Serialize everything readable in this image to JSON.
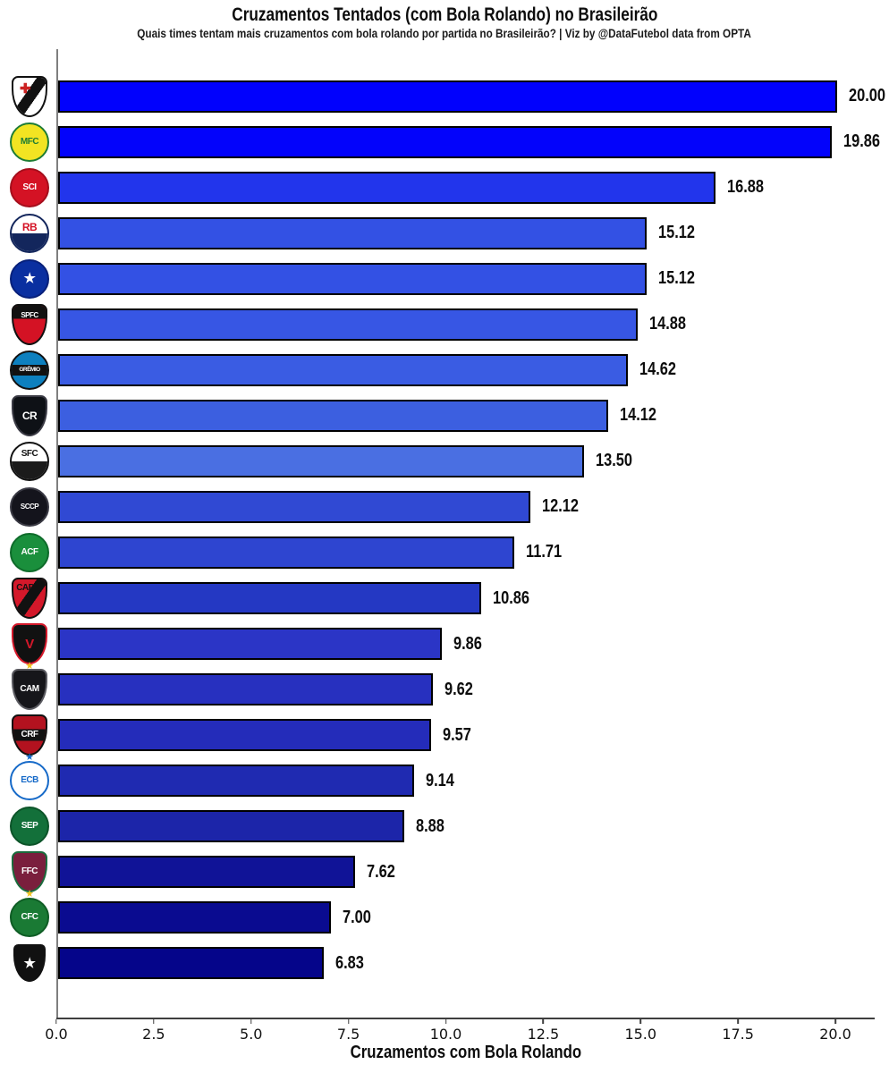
{
  "header": {
    "title": "Cruzamentos Tentados (com Bola Rolando) no Brasileirão",
    "subtitle": "Quais times tentam mais cruzamentos com bola rolando por partida no Brasileirão? | Viz by @DataFutebol data from OPTA"
  },
  "chart_data": {
    "type": "bar",
    "orientation": "horizontal",
    "title": "Cruzamentos Tentados (com Bola Rolando) no Brasileirão",
    "xlabel": "Cruzamentos com Bola Rolando",
    "ylabel": "",
    "xlim": [
      0,
      21
    ],
    "grid": false,
    "legend": "none",
    "bar_edge_color": "#000000",
    "x_ticks": [
      {
        "label": "0.0",
        "value": 0
      },
      {
        "label": "2.5",
        "value": 2.5
      },
      {
        "label": "5.0",
        "value": 5
      },
      {
        "label": "7.5",
        "value": 7.5
      },
      {
        "label": "10.0",
        "value": 10
      },
      {
        "label": "12.5",
        "value": 12.5
      },
      {
        "label": "15.0",
        "value": 15
      },
      {
        "label": "17.5",
        "value": 17.5
      },
      {
        "label": "20.0",
        "value": 20
      }
    ],
    "bars": [
      {
        "team": "Vasco da Gama",
        "value": 20.0,
        "label": "20.00",
        "color": "#0101FD",
        "logo": {
          "shape": "shield",
          "bg": "#ffffff",
          "border": "#111111",
          "band": "diagonal",
          "band_color": "#111111",
          "text": "✚",
          "text_color": "#cc2222",
          "text_pos": "tl"
        }
      },
      {
        "team": "Mirassol",
        "value": 19.86,
        "label": "19.86",
        "color": "#0303FB",
        "logo": {
          "shape": "circle",
          "bg": "#f2e422",
          "border": "#1e7c34",
          "text": "MFC",
          "text_color": "#1e7c34"
        }
      },
      {
        "team": "Internacional",
        "value": 16.88,
        "label": "16.88",
        "color": "#2235EC",
        "logo": {
          "shape": "circle",
          "bg": "#d41224",
          "border": "#a50e1c",
          "text": "SCI",
          "text_color": "#ffffff"
        }
      },
      {
        "team": "Red Bull Bragantino",
        "value": 15.12,
        "label": "15.12",
        "color": "#3351E4",
        "logo": {
          "shape": "circle",
          "bg": "#ffffff",
          "border": "#13265c",
          "half": "#13265c",
          "text": "RB",
          "text_color": "#d41224",
          "text_pos": "top"
        }
      },
      {
        "team": "Cruzeiro",
        "value": 15.12,
        "label": "15.12",
        "color": "#3351E4",
        "logo": {
          "shape": "circle",
          "bg": "#0a2fa0",
          "border": "#07207a",
          "text": "★",
          "text_color": "#ffffff"
        }
      },
      {
        "team": "São Paulo",
        "value": 14.88,
        "label": "14.88",
        "color": "#3756E4",
        "logo": {
          "shape": "shield",
          "bg": "#d41224",
          "border": "#111111",
          "band": "top",
          "band_color": "#111111",
          "text": "SPFC",
          "text_color": "#ffffff",
          "text_pos": "top"
        }
      },
      {
        "team": "Grêmio",
        "value": 14.62,
        "label": "14.62",
        "color": "#3A5CE3",
        "logo": {
          "shape": "circle",
          "bg": "#0d80bf",
          "border": "#111111",
          "band": "middle",
          "band_color": "#111111",
          "text": "GRÊMIO",
          "text_color": "#ffffff"
        }
      },
      {
        "team": "Remo",
        "value": 14.12,
        "label": "14.12",
        "color": "#3C5FE0",
        "logo": {
          "shape": "shield",
          "bg": "#0e1116",
          "border": "#3a3a44",
          "text": "CR",
          "text_color": "#ffffff"
        }
      },
      {
        "team": "Santos",
        "value": 13.5,
        "label": "13.50",
        "color": "#4A6FE2",
        "logo": {
          "shape": "circle",
          "bg": "#ffffff",
          "border": "#111111",
          "half": "#1b1b1b",
          "text": "SFC",
          "text_color": "#111111",
          "text_pos": "top"
        }
      },
      {
        "team": "Corinthians",
        "value": 12.12,
        "label": "12.12",
        "color": "#3049D3",
        "logo": {
          "shape": "circle",
          "bg": "#14141c",
          "border": "#3a3a44",
          "text": "SCCP",
          "text_color": "#ffffff"
        }
      },
      {
        "team": "Chapecoense",
        "value": 11.71,
        "label": "11.71",
        "color": "#2E45D0",
        "logo": {
          "shape": "circle",
          "bg": "#1a8f3c",
          "border": "#0e6b2a",
          "text": "ACF",
          "text_color": "#ffffff"
        }
      },
      {
        "team": "Athletico Paranaense",
        "value": 10.86,
        "label": "10.86",
        "color": "#2438C3",
        "logo": {
          "shape": "shield",
          "bg": "#d4182a",
          "border": "#111111",
          "band": "diagonal",
          "band_color": "#111111",
          "text": "CAP",
          "text_color": "#111111",
          "text_pos": "tl"
        }
      },
      {
        "team": "Vitória",
        "value": 9.86,
        "label": "9.86",
        "color": "#2B35C6",
        "logo": {
          "shape": "shield",
          "bg": "#111111",
          "border": "#d4182a",
          "text": "V",
          "text_color": "#d4182a"
        }
      },
      {
        "team": "Atlético Mineiro",
        "value": 9.62,
        "label": "9.62",
        "color": "#2730BF",
        "logo": {
          "shape": "shield",
          "bg": "#16161a",
          "border": "#5a5a60",
          "text": "CAM",
          "text_color": "#ffffff",
          "star": "#f2c41d"
        }
      },
      {
        "team": "Flamengo",
        "value": 9.57,
        "label": "9.57",
        "color": "#242CBA",
        "logo": {
          "shape": "shield",
          "bg": "#b3121f",
          "border": "#111111",
          "band": "middle",
          "band_color": "#111111",
          "text": "CRF",
          "text_color": "#ffffff"
        }
      },
      {
        "team": "Bahia",
        "value": 9.14,
        "label": "9.14",
        "color": "#1F2AB1",
        "logo": {
          "shape": "circle",
          "bg": "#ffffff",
          "border": "#1569c8",
          "text": "ECB",
          "text_color": "#1569c8",
          "star": "#1569c8"
        }
      },
      {
        "team": "Palmeiras",
        "value": 8.88,
        "label": "8.88",
        "color": "#1C25A9",
        "logo": {
          "shape": "circle",
          "bg": "#13703a",
          "border": "#0c5429",
          "text": "SEP",
          "text_color": "#ffffff"
        }
      },
      {
        "team": "Fluminense",
        "value": 7.62,
        "label": "7.62",
        "color": "#101397",
        "logo": {
          "shape": "shield",
          "bg": "#7a1f3d",
          "border": "#1a6b3c",
          "text": "FFC",
          "text_color": "#ffffff"
        }
      },
      {
        "team": "Coritiba",
        "value": 7.0,
        "label": "7.00",
        "color": "#0A0B90",
        "logo": {
          "shape": "circle",
          "bg": "#1a7a34",
          "border": "#0e5c24",
          "text": "CFC",
          "text_color": "#ffffff",
          "star": "#f2c41d"
        }
      },
      {
        "team": "Botafogo",
        "value": 6.83,
        "label": "6.83",
        "color": "#05058A",
        "logo": {
          "shape": "shield",
          "bg": "#111111",
          "border": "#ffffff",
          "text": "★",
          "text_color": "#ffffff"
        }
      }
    ]
  }
}
